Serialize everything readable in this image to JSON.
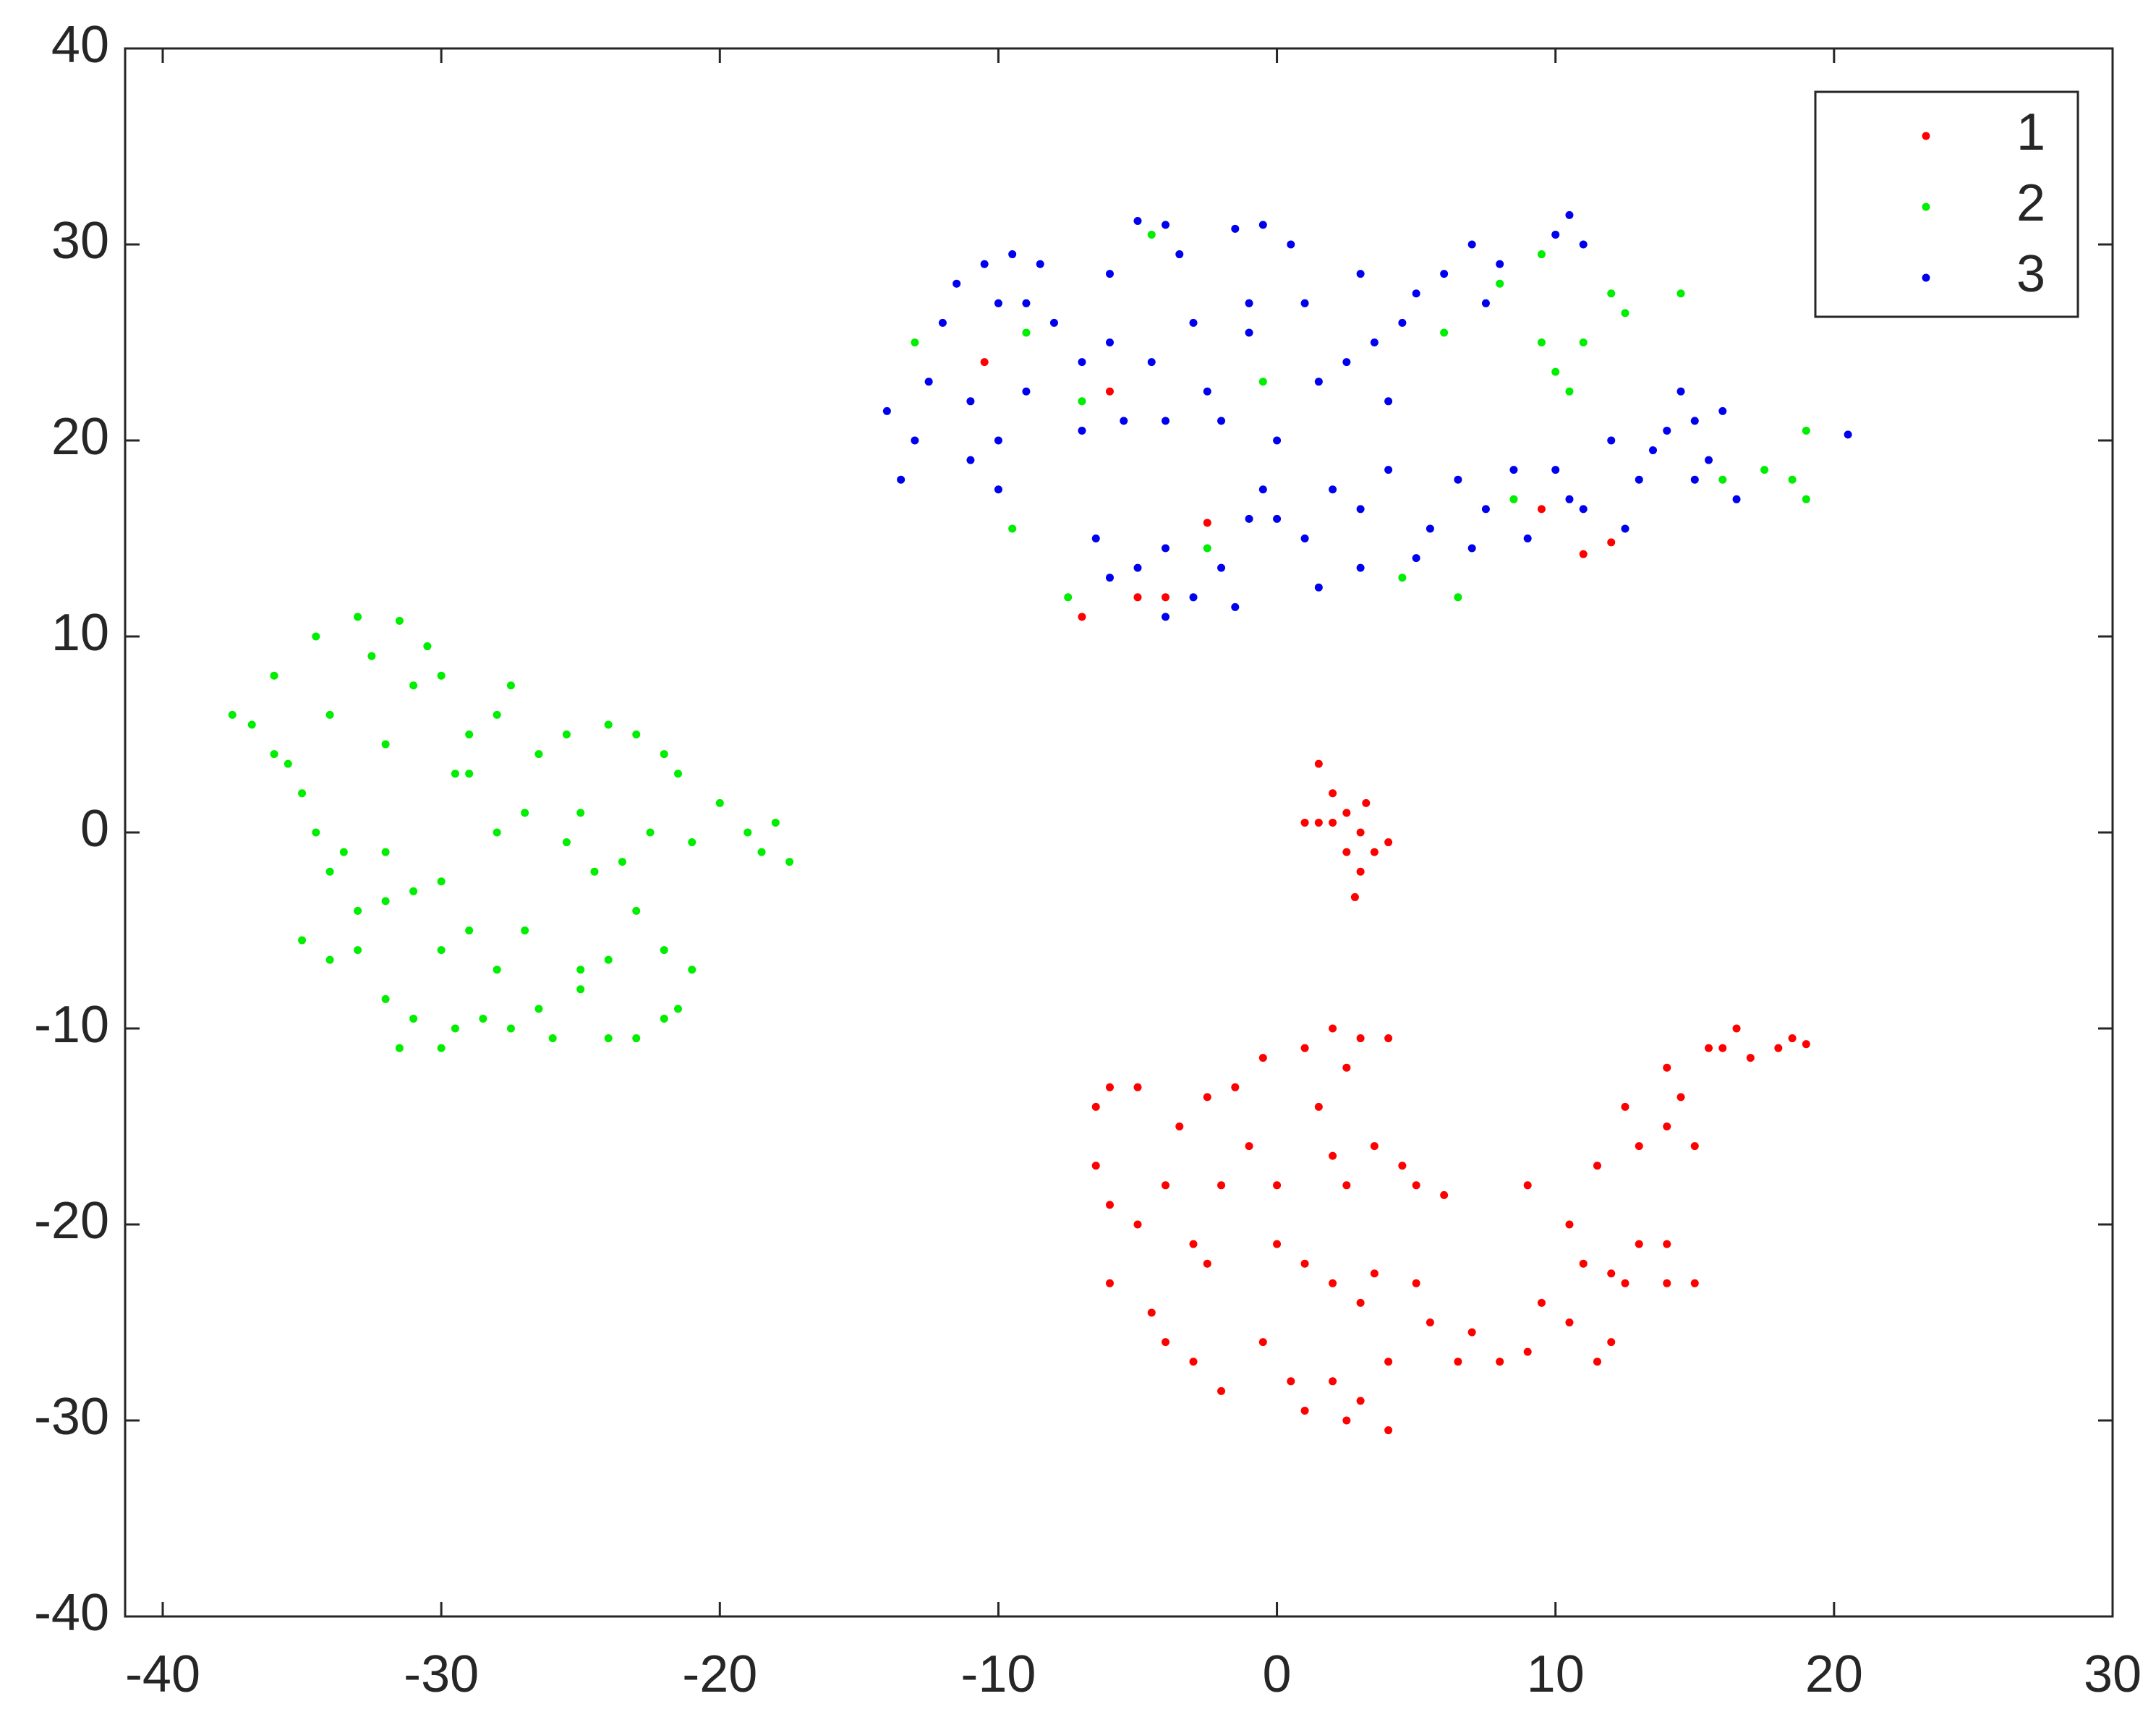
{
  "chart_data": {
    "type": "scatter",
    "xlim": [
      -41.35,
      30
    ],
    "ylim": [
      -40,
      40
    ],
    "xticks": [
      -40,
      -30,
      -20,
      -10,
      0,
      10,
      20,
      30
    ],
    "yticks": [
      -40,
      -30,
      -20,
      -10,
      0,
      10,
      20,
      30,
      40
    ],
    "legend": "northeast",
    "box": true,
    "series": [
      {
        "name": "1",
        "color": "#ff0000",
        "x": [
          1.5,
          2,
          1.5,
          2.5,
          3,
          2.5,
          3,
          3.5,
          2,
          4,
          2.8,
          1,
          3.2,
          -6.5,
          -6,
          -5,
          -6.5,
          -6,
          -5,
          -4,
          -3.5,
          -2.5,
          -1.5,
          -0.5,
          1,
          2,
          3,
          4,
          2.5,
          1.5,
          2,
          2.5,
          3.5,
          0,
          -1,
          -2,
          -3,
          -2.5,
          -4.5,
          -6,
          -4,
          -3,
          -2,
          -0.5,
          0.5,
          1,
          2,
          2.5,
          3,
          4,
          4,
          3,
          2,
          1,
          0,
          3.5,
          5,
          5.5,
          6.5,
          7,
          8,
          9,
          9.5,
          10.5,
          11,
          11.5,
          12,
          12.5,
          13,
          14,
          15,
          14,
          12,
          10.5,
          9,
          6,
          5,
          4.5,
          11.5,
          12.5,
          13,
          14,
          15,
          14.5,
          14,
          15.5,
          16.5,
          17,
          18,
          18.5,
          19,
          16,
          -10.5,
          -6,
          -7,
          -5,
          -4,
          -2.5,
          9.5,
          11,
          12
        ],
        "y": [
          3.5,
          2,
          0.5,
          1,
          0,
          -1,
          -2,
          -1,
          0.5,
          -0.5,
          -3.3,
          0.5,
          1.5,
          -14,
          -13,
          -13,
          -17,
          -19,
          -20,
          -18,
          -15,
          -13.5,
          -13,
          -11.5,
          -11,
          -10,
          -10.5,
          -10.5,
          -12,
          -14,
          -16.5,
          -18,
          -16,
          -18,
          -16,
          -18,
          -21,
          -22,
          -24.5,
          -23,
          -26,
          -27,
          -28.5,
          -26,
          -28,
          -29.5,
          -28,
          -30,
          -29,
          -30.5,
          -27,
          -24,
          -23,
          -22,
          -21,
          -22.5,
          -23,
          -25,
          -27,
          -25.5,
          -27,
          -26.5,
          -24,
          -25,
          -22,
          -27,
          -26,
          -23,
          -21,
          -23,
          -23,
          -21,
          -22.5,
          -20,
          -18,
          -18.5,
          -18,
          -17,
          -17,
          -14,
          -16,
          -15,
          -16,
          -13.5,
          -12,
          -11,
          -10,
          -11.5,
          -11,
          -10.5,
          -10.8,
          -11,
          24,
          22.5,
          11,
          12,
          12,
          15.8,
          16.5,
          14.2,
          14.8
        ]
      },
      {
        "name": "2",
        "color": "#00ee00",
        "x": [
          -37.5,
          -36.8,
          -36,
          -35.5,
          -35,
          -34.5,
          -34,
          -33.5,
          -33,
          -32.5,
          -32,
          -31.5,
          -31,
          -30.5,
          -30,
          -29.5,
          -29,
          -28,
          -27.5,
          -26.5,
          -25.5,
          -25,
          -24,
          -23,
          -22,
          -21.5,
          -20,
          -19,
          -18.5,
          -17.5,
          -18,
          -21,
          -22.5,
          -23.5,
          -24.5,
          -25.5,
          -27,
          -28,
          -29,
          -30,
          -31,
          -32,
          -33,
          -34,
          -35,
          -34,
          -33,
          -32,
          -31,
          -30,
          -31.5,
          -29.5,
          -28.5,
          -27.5,
          -26.5,
          -26,
          -25,
          -24,
          -23,
          -22,
          -21.5,
          -21,
          -22,
          -23,
          -24,
          -25,
          -27,
          -28,
          -29,
          -30,
          -32,
          -36,
          -34.5,
          -13,
          -9,
          -9.5,
          -7.5,
          -7,
          -4.5,
          -2.5,
          -0.5,
          6,
          6.5,
          8,
          9.5,
          10,
          10.5,
          11,
          12,
          12.5,
          14.5,
          16,
          17.5,
          18.5,
          19,
          19,
          9.5,
          4.5,
          8.5
        ],
        "y": [
          6,
          5.5,
          8,
          3.5,
          2,
          10,
          6,
          -1,
          11,
          9,
          4.5,
          10.8,
          7.5,
          9.5,
          8,
          3,
          5,
          6,
          7.5,
          4,
          5,
          1,
          5.5,
          5,
          4,
          3,
          1.5,
          0,
          -1,
          -1.5,
          0.5,
          -0.5,
          0,
          -1.5,
          -2,
          -0.5,
          1,
          0,
          3,
          -2.5,
          -3,
          -3.5,
          -4,
          -2,
          -5.5,
          -6.5,
          -6,
          -8.5,
          -9.5,
          -11,
          -11,
          -10,
          -9.5,
          -10,
          -9,
          -10.5,
          -8,
          -10.5,
          -10.5,
          -9.5,
          -9,
          -7,
          -6,
          -4,
          -6.5,
          -7,
          -5,
          -7,
          -5,
          -6,
          -1,
          4,
          0,
          25,
          25.5,
          15.5,
          12,
          22,
          30.5,
          14.5,
          23,
          25.5,
          12,
          28,
          25,
          23.5,
          22.5,
          25,
          27.5,
          26.5,
          27.5,
          18,
          18.5,
          18,
          20.5,
          17,
          29.5,
          13,
          17
        ]
      },
      {
        "name": "3",
        "color": "#0000ee",
        "x": [
          -14,
          -13.5,
          -13,
          -12.5,
          -12,
          -11.5,
          -11,
          -10.5,
          -10,
          -10,
          -9.5,
          -9,
          -9,
          -11,
          -10,
          -8.5,
          -8,
          -7,
          -6,
          -6,
          -7,
          -5.5,
          -5,
          -4,
          -3.5,
          -3,
          -4.5,
          -4,
          -2.5,
          -1.5,
          -0.5,
          -1,
          -1,
          -2,
          0.5,
          1,
          1.5,
          2.5,
          3,
          3.5,
          4,
          4.5,
          5,
          6,
          7,
          7.5,
          8,
          10,
          10.5,
          11,
          -6.5,
          -6,
          -5,
          -4,
          -3,
          -2,
          -1,
          0,
          -1.5,
          -0.5,
          0,
          1,
          2,
          3,
          4,
          3,
          5,
          5.5,
          6.5,
          7.5,
          7,
          8.5,
          9,
          10,
          10.5,
          11,
          12,
          12.5,
          13,
          13.5,
          14,
          14.5,
          15,
          15.5,
          16,
          16.5,
          15,
          20.5,
          -4,
          1.5
        ],
        "y": [
          21.5,
          18,
          20,
          23,
          26,
          28,
          22,
          29,
          27,
          20,
          29.5,
          27,
          22.5,
          19,
          17.5,
          29,
          26,
          24,
          25,
          28.5,
          20.5,
          21,
          31.2,
          31,
          29.5,
          26,
          24,
          21,
          22.5,
          30.8,
          31,
          25.5,
          27,
          21,
          30,
          27,
          23,
          24,
          28.5,
          25,
          22,
          26,
          27.5,
          28.5,
          30,
          27,
          29,
          30.5,
          31.5,
          30,
          15,
          13,
          13.5,
          11,
          12,
          13.5,
          16,
          16,
          11.5,
          17.5,
          20,
          15,
          17.5,
          16.5,
          18.5,
          13.5,
          14,
          15.5,
          18,
          16.5,
          14.5,
          18.5,
          15,
          18.5,
          17,
          16.5,
          20,
          15.5,
          18,
          19.5,
          20.5,
          22.5,
          21,
          19,
          21.5,
          17,
          18,
          20.3,
          14.5,
          12.5
        ]
      }
    ]
  }
}
